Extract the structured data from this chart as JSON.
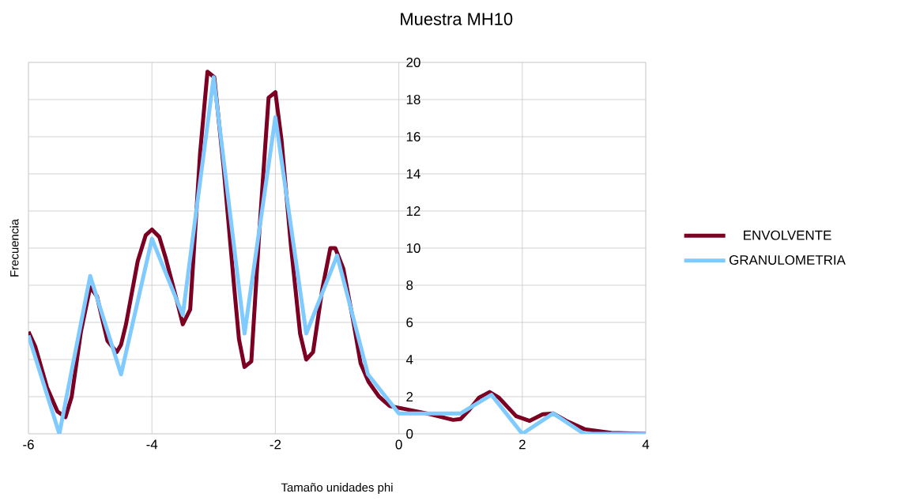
{
  "chart_data": {
    "type": "line",
    "title": "Muestra MH10",
    "xlabel": "Tamaño unidades phi",
    "ylabel": "Frecuencia",
    "xlim": [
      -6,
      4
    ],
    "ylim": [
      0,
      20
    ],
    "xticks": [
      -6,
      -4,
      -2,
      0,
      2,
      4
    ],
    "yticks": [
      0,
      2,
      4,
      6,
      8,
      10,
      12,
      14,
      16,
      18,
      20
    ],
    "grid": true,
    "legend": "right",
    "marker": "none",
    "line_style": "solid",
    "series": [
      {
        "name": "ENVOLVENTE",
        "color": "#7b0022",
        "x": [
          -6,
          -5.89,
          -5.7,
          -5.53,
          -5.4,
          -5.3,
          -5.15,
          -5.0,
          -4.89,
          -4.72,
          -4.57,
          -4.5,
          -4.42,
          -4.23,
          -4.1,
          -4.0,
          -3.88,
          -3.78,
          -3.59,
          -3.5,
          -3.38,
          -3.22,
          -3.1,
          -2.99,
          -2.84,
          -2.67,
          -2.59,
          -2.5,
          -2.39,
          -2.26,
          -2.11,
          -2.0,
          -1.9,
          -1.75,
          -1.6,
          -1.5,
          -1.39,
          -1.24,
          -1.11,
          -1.03,
          -0.9,
          -0.74,
          -0.62,
          -0.49,
          -0.32,
          -0.15,
          0,
          0.45,
          0.88,
          1.0,
          1.13,
          1.3,
          1.47,
          1.62,
          1.9,
          2.12,
          2.33,
          2.5,
          2.71,
          3.01,
          3.44,
          4
        ],
        "values": [
          5.5,
          4.7,
          2.5,
          1.2,
          0.9,
          2.0,
          5.5,
          7.9,
          7.4,
          5.0,
          4.4,
          4.8,
          5.9,
          9.3,
          10.7,
          11.0,
          10.6,
          9.5,
          7.1,
          5.9,
          6.7,
          15.1,
          19.5,
          19.2,
          14.4,
          8.0,
          5.1,
          3.6,
          3.9,
          10.9,
          18.1,
          18.4,
          15.8,
          10.2,
          5.4,
          4.0,
          4.4,
          7.8,
          10.0,
          10.0,
          8.9,
          6.1,
          3.8,
          2.8,
          2.0,
          1.5,
          1.4,
          1.1,
          0.75,
          0.8,
          1.25,
          1.95,
          2.25,
          1.95,
          0.95,
          0.7,
          1.05,
          1.1,
          0.7,
          0.25,
          0.05,
          0
        ]
      },
      {
        "name": "GRANULOMETRIA",
        "color": "#7fcaff",
        "x": [
          -6,
          -5.5,
          -5,
          -4.5,
          -4,
          -3.5,
          -3,
          -2.5,
          -2,
          -1.5,
          -1,
          -0.5,
          0,
          0.5,
          1,
          1.5,
          2,
          2.5,
          3,
          3.5,
          4
        ],
        "values": [
          5.3,
          0,
          8.5,
          3.2,
          10.5,
          6.4,
          19.2,
          5.4,
          17.05,
          5.4,
          9.6,
          3.2,
          1.1,
          1.1,
          1.1,
          2.1,
          0,
          1.1,
          0,
          0,
          0
        ]
      }
    ]
  }
}
